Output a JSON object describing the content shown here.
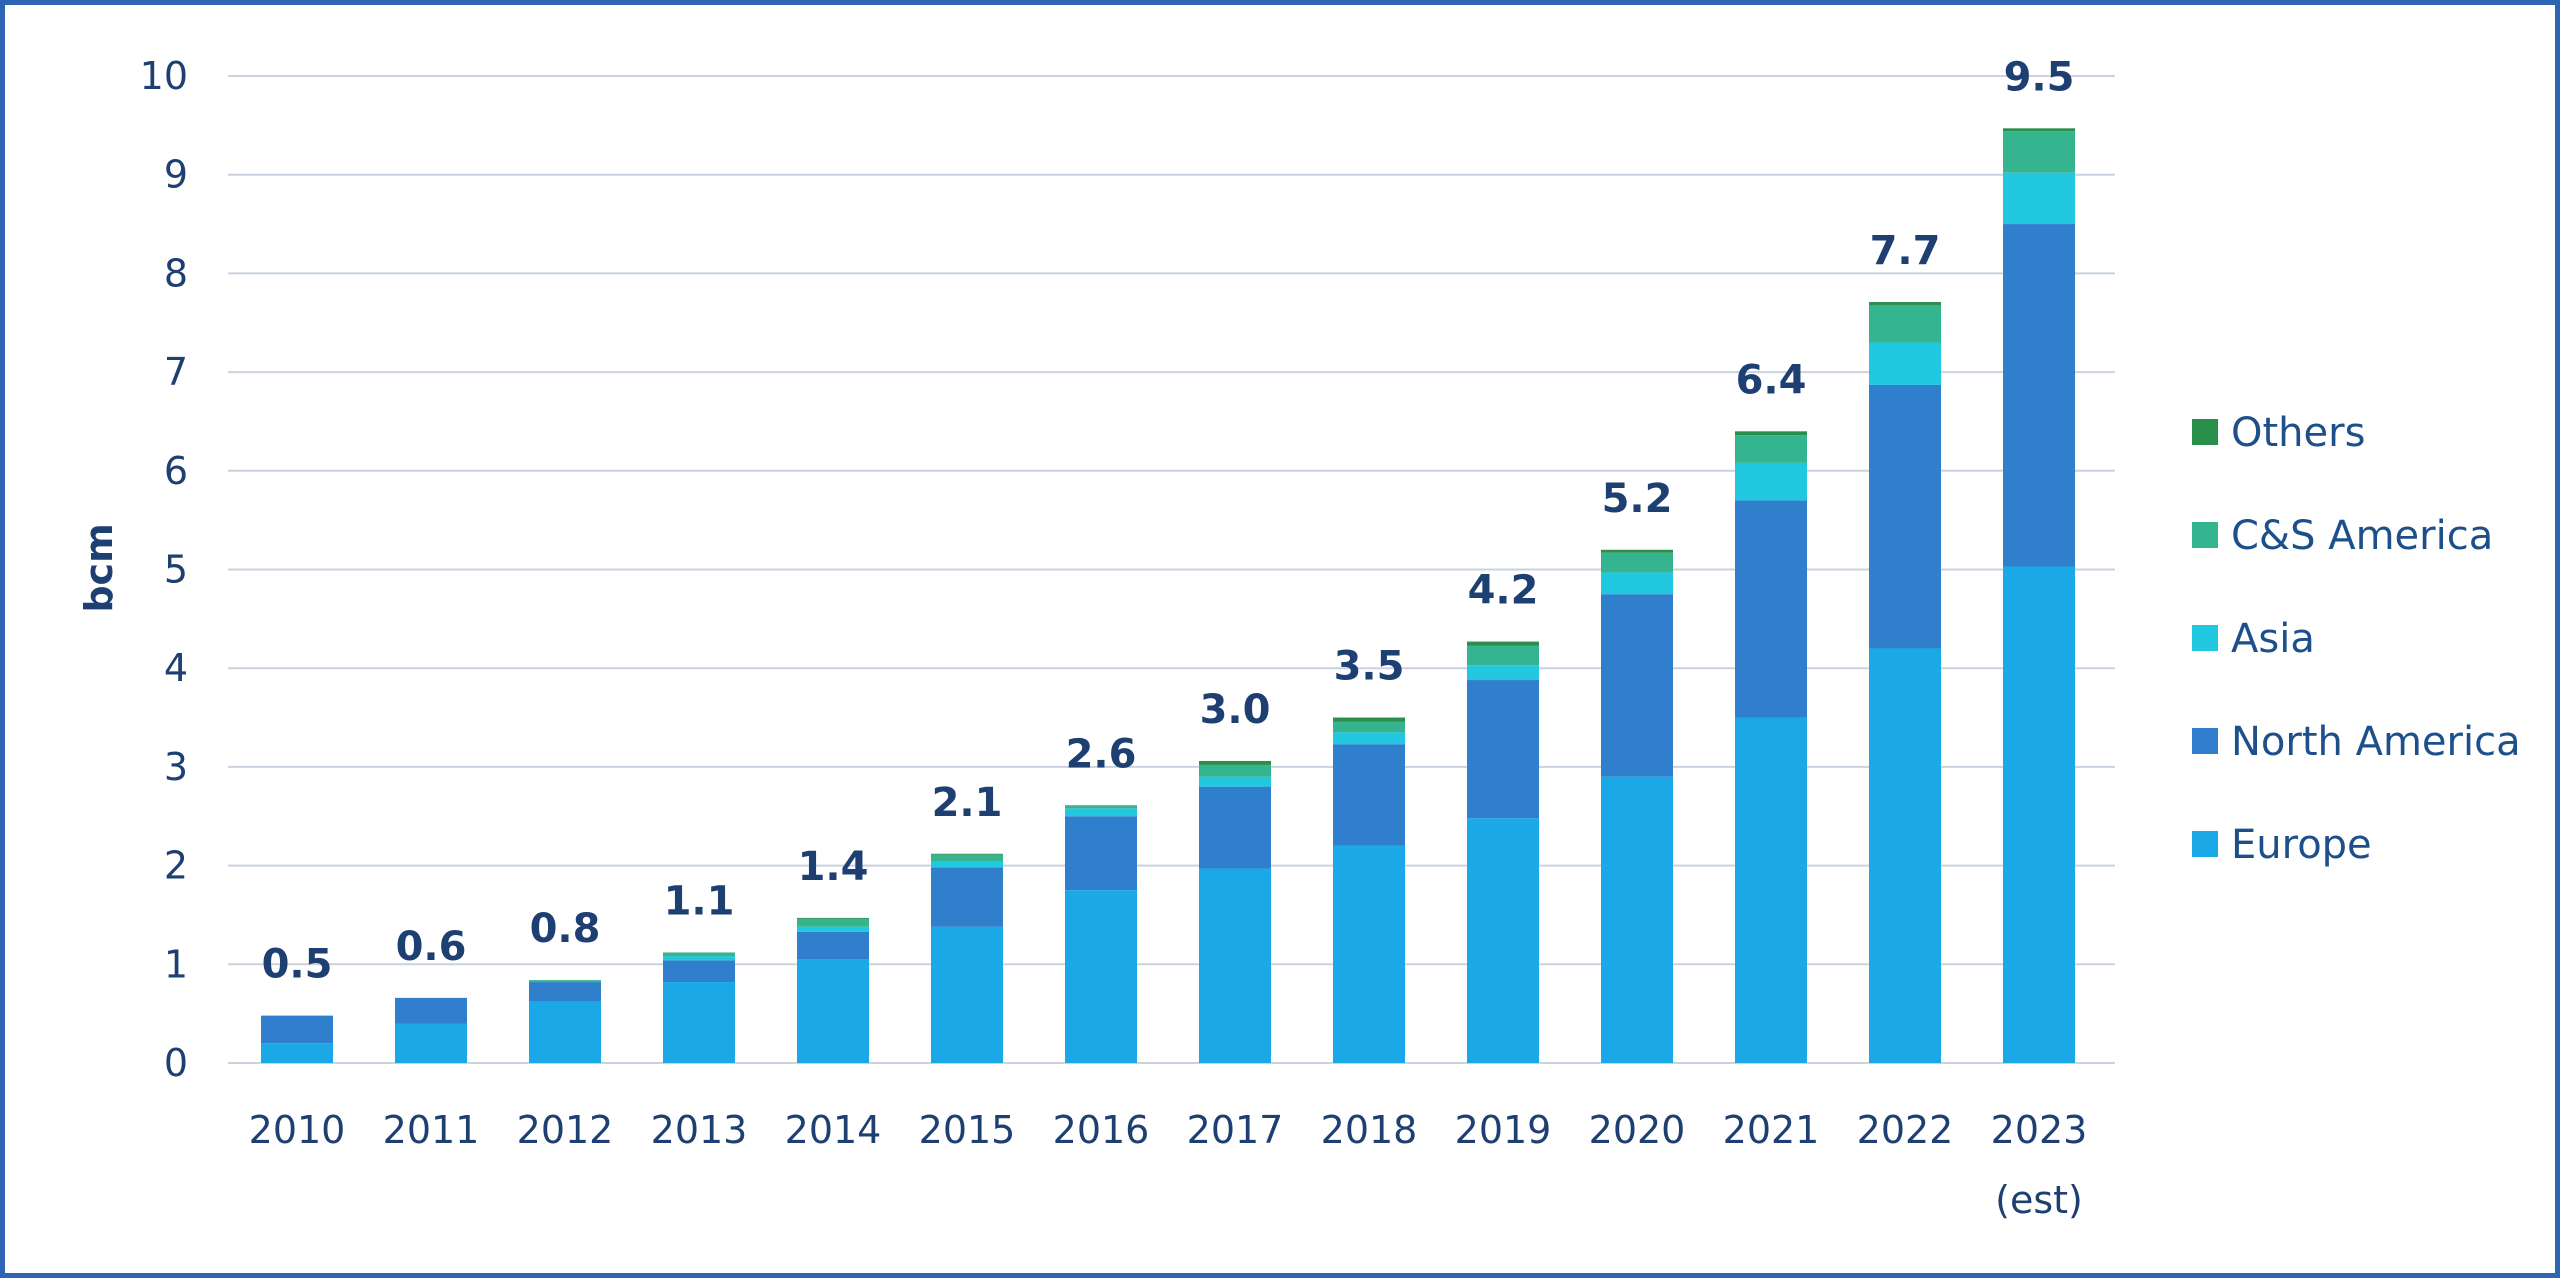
{
  "chart_data": {
    "type": "stacked-bar",
    "ylabel": "bcm",
    "xlabel": "",
    "ylim": [
      0,
      10
    ],
    "yticks": [
      0,
      1,
      2,
      3,
      4,
      5,
      6,
      7,
      8,
      9,
      10
    ],
    "grid": true,
    "legend_position": "right",
    "categories": [
      "2010",
      "2011",
      "2012",
      "2013",
      "2014",
      "2015",
      "2016",
      "2017",
      "2018",
      "2019",
      "2020",
      "2021",
      "2022",
      "2023"
    ],
    "category_sublabels": [
      "",
      "",
      "",
      "",
      "",
      "",
      "",
      "",
      "",
      "",
      "",
      "",
      "",
      "(est)"
    ],
    "totals": [
      "0.5",
      "0.6",
      "0.8",
      "1.1",
      "1.4",
      "2.1",
      "2.6",
      "3.0",
      "3.5",
      "4.2",
      "5.2",
      "6.4",
      "7.7",
      "9.5"
    ],
    "series": [
      {
        "name": "Europe",
        "color": "#1aa8e6",
        "values": [
          0.2,
          0.4,
          0.62,
          0.82,
          1.05,
          1.38,
          1.75,
          1.97,
          2.2,
          2.48,
          2.9,
          3.5,
          4.2,
          5.03
        ]
      },
      {
        "name": "North America",
        "color": "#2f7fcd",
        "values": [
          0.28,
          0.26,
          0.2,
          0.22,
          0.28,
          0.6,
          0.75,
          0.83,
          1.03,
          1.4,
          1.85,
          2.2,
          2.67,
          3.47
        ]
      },
      {
        "name": "Asia",
        "color": "#22c8df",
        "values": [
          0.0,
          0.0,
          0.0,
          0.04,
          0.05,
          0.06,
          0.08,
          0.1,
          0.12,
          0.15,
          0.22,
          0.38,
          0.43,
          0.52
        ]
      },
      {
        "name": "C&S America",
        "color": "#34b58f",
        "values": [
          0.0,
          0.0,
          0.02,
          0.04,
          0.08,
          0.07,
          0.02,
          0.12,
          0.11,
          0.2,
          0.2,
          0.28,
          0.38,
          0.42
        ]
      },
      {
        "name": "Others",
        "color": "#2b8f4c",
        "values": [
          0.0,
          0.0,
          0.0,
          0.0,
          0.01,
          0.01,
          0.01,
          0.04,
          0.04,
          0.04,
          0.03,
          0.04,
          0.03,
          0.03
        ]
      }
    ],
    "legend_order": [
      "Others",
      "C&S America",
      "Asia",
      "North America",
      "Europe"
    ]
  }
}
